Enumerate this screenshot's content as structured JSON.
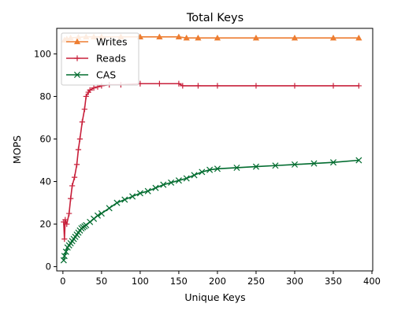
{
  "chart_data": {
    "type": "line",
    "title": "Total Keys",
    "xlabel": "Unique Keys",
    "ylabel": "MOPS",
    "xlim": [
      -8,
      401
    ],
    "ylim": [
      -2,
      112
    ],
    "xticks": [
      0,
      50,
      100,
      150,
      200,
      250,
      300,
      350,
      400
    ],
    "yticks": [
      0,
      20,
      40,
      60,
      80,
      100
    ],
    "grid": false,
    "legend_position": "upper-left",
    "series": [
      {
        "name": "Writes",
        "color": "#ed7d31",
        "marker": "triangle-up",
        "x": [
          2,
          5,
          10,
          20,
          30,
          40,
          50,
          75,
          100,
          125,
          150,
          160,
          175,
          200,
          250,
          300,
          350,
          383
        ],
        "y": [
          106.5,
          107,
          107.5,
          107.8,
          108,
          108,
          108,
          108,
          108,
          108,
          108,
          107.5,
          107.5,
          107.5,
          107.5,
          107.5,
          107.5,
          107.5
        ]
      },
      {
        "name": "Reads",
        "color": "#c8203b",
        "marker": "plus",
        "x": [
          1,
          2,
          3,
          5,
          8,
          10,
          12,
          15,
          18,
          20,
          22,
          25,
          28,
          30,
          33,
          35,
          40,
          45,
          50,
          60,
          75,
          100,
          125,
          150,
          155,
          175,
          200,
          250,
          300,
          350,
          383
        ],
        "y": [
          21,
          13,
          22,
          20,
          25,
          32,
          38,
          42,
          48,
          55,
          60,
          68,
          74,
          80,
          82,
          83,
          84,
          84.5,
          85,
          85.5,
          85.5,
          86,
          86,
          86,
          85,
          85,
          85,
          85,
          85,
          85,
          85
        ]
      },
      {
        "name": "CAS",
        "color": "#006b2e",
        "marker": "x",
        "x": [
          1,
          2,
          4,
          6,
          8,
          10,
          12,
          14,
          16,
          18,
          20,
          22,
          24,
          26,
          28,
          30,
          35,
          40,
          45,
          50,
          60,
          70,
          80,
          90,
          100,
          110,
          120,
          130,
          140,
          150,
          160,
          170,
          180,
          190,
          200,
          225,
          250,
          275,
          300,
          325,
          350,
          383
        ],
        "y": [
          3,
          5,
          7,
          9,
          10,
          11,
          12,
          13,
          14,
          15,
          16,
          17,
          18,
          18.5,
          19,
          19.5,
          21,
          22.5,
          24,
          25,
          27.5,
          30,
          31.5,
          33,
          34.5,
          35.5,
          37,
          38.5,
          39.5,
          40.5,
          41.5,
          43,
          44.5,
          45.5,
          46,
          46.5,
          47,
          47.5,
          48,
          48.5,
          49,
          50
        ]
      }
    ]
  }
}
